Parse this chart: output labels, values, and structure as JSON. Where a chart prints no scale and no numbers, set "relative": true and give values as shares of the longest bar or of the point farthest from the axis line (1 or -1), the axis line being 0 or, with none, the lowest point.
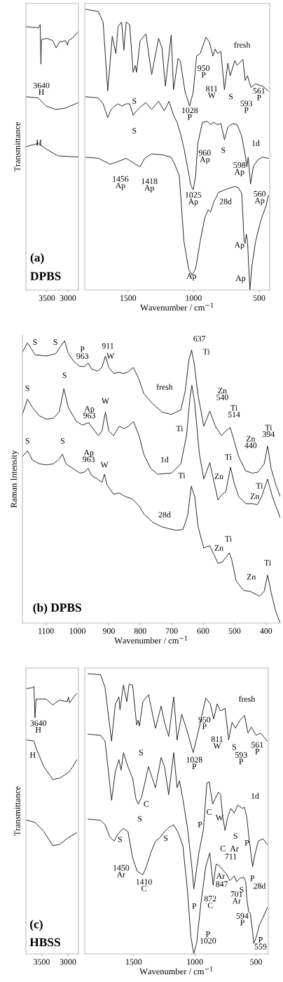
{
  "chart_data": [
    {
      "type": "line",
      "relative": true,
      "xlim": [
        4000,
        2750
      ],
      "xticks": [
        3500,
        3000
      ],
      "tick_labels": "x",
      "ylabel": "Transmittance",
      "series": [
        {
          "color": "#222222",
          "x": [
            4000,
            3700,
            3660,
            3644,
            3630,
            3500,
            3360,
            3280,
            3200,
            3060,
            3010,
            2990,
            2900,
            2750
          ],
          "values": [
            0.992,
            0.987,
            1.0,
            0.851,
            0.943,
            0.948,
            0.939,
            0.912,
            0.934,
            0.939,
            0.922,
            0.939,
            0.948,
            0.974
          ]
        },
        {
          "color": "#222222",
          "x": [
            4000,
            3710,
            3630,
            3520,
            3290,
            3060,
            2945,
            2750
          ],
          "values": [
            0.728,
            0.724,
            0.711,
            0.693,
            0.68,
            0.685,
            0.693,
            0.706
          ]
        },
        {
          "color": "#222222",
          "x": [
            4000,
            3710,
            3520,
            3230,
            2750
          ],
          "values": [
            0.54,
            0.552,
            0.531,
            0.505,
            0.501
          ]
        }
      ],
      "annotations": [
        "3640\nH",
        "H",
        "(a)",
        "DPBS"
      ]
    },
    {
      "type": "line",
      "relative": true,
      "xlim": [
        1830,
        420
      ],
      "xticks": [
        1500,
        1000,
        500
      ],
      "tick_labels": "x",
      "xlabel": "Wavenumber / cm$^{−1}$",
      "series": [
        {
          "color": "#222222",
          "x": [
            1822,
            1726,
            1690,
            1655,
            1620,
            1593,
            1576,
            1549,
            1532,
            1514,
            1488,
            1461,
            1444,
            1435,
            1408,
            1364,
            1320,
            1267,
            1241,
            1215,
            1171,
            1153,
            1118,
            1100,
            1065,
            1030,
            1003,
            977,
            950,
            906,
            880,
            853,
            836,
            818,
            792,
            765,
            739,
            721,
            686,
            668,
            624,
            607,
            589,
            563,
            527,
            475,
            430
          ],
          "values": [
            1.0,
            0.991,
            0.954,
            0.709,
            0.904,
            0.842,
            0.937,
            0.954,
            0.854,
            0.954,
            0.945,
            0.775,
            0.8,
            0.775,
            0.887,
            0.912,
            0.767,
            0.896,
            0.862,
            0.726,
            0.908,
            0.713,
            0.825,
            0.813,
            0.705,
            0.655,
            0.705,
            0.833,
            0.842,
            0.9,
            0.883,
            0.833,
            0.858,
            0.842,
            0.85,
            0.713,
            0.808,
            0.763,
            0.817,
            0.8,
            0.821,
            0.746,
            0.763,
            0.721,
            0.734,
            0.726,
            0.709
          ]
        },
        {
          "color": "#222222",
          "x": [
            1822,
            1726,
            1690,
            1655,
            1629,
            1602,
            1576,
            1549,
            1514,
            1488,
            1461,
            1435,
            1408,
            1364,
            1320,
            1267,
            1223,
            1188,
            1153,
            1126,
            1100,
            1074,
            1047,
            1021,
            1003,
            985,
            968,
            933,
            897,
            871,
            845,
            818,
            792,
            765,
            739,
            704,
            668,
            633,
            607,
            594,
            584,
            566,
            545,
            510,
            475,
            430
          ],
          "values": [
            0.688,
            0.684,
            0.663,
            0.614,
            0.643,
            0.655,
            0.663,
            0.655,
            0.663,
            0.663,
            0.622,
            0.638,
            0.651,
            0.667,
            0.643,
            0.672,
            0.638,
            0.672,
            0.622,
            0.597,
            0.556,
            0.506,
            0.439,
            0.373,
            0.357,
            0.406,
            0.522,
            0.597,
            0.601,
            0.589,
            0.597,
            0.589,
            0.593,
            0.535,
            0.58,
            0.593,
            0.589,
            0.547,
            0.481,
            0.439,
            0.473,
            0.377,
            0.439,
            0.464,
            0.473,
            0.469
          ]
        },
        {
          "color": "#222222",
          "x": [
            1822,
            1726,
            1637,
            1585,
            1514,
            1444,
            1408,
            1373,
            1320,
            1232,
            1171,
            1144,
            1109,
            1074,
            1038,
            1012,
            985,
            950,
            915,
            889,
            871,
            845,
            809,
            739,
            686,
            660,
            633,
            615,
            607,
            598,
            589,
            571,
            554,
            527,
            492,
            475,
            448,
            430
          ],
          "values": [
            0.473,
            0.469,
            0.448,
            0.456,
            0.469,
            0.448,
            0.439,
            0.469,
            0.485,
            0.481,
            0.473,
            0.448,
            0.406,
            0.174,
            0.075,
            0.054,
            0.075,
            0.174,
            0.257,
            0.286,
            0.278,
            0.315,
            0.348,
            0.361,
            0.369,
            0.365,
            0.344,
            0.174,
            0.166,
            0.199,
            0.174,
            0.0,
            0.091,
            0.174,
            0.24,
            0.265,
            0.299,
            0.337
          ]
        }
      ],
      "annotations": [
        "fresh",
        "950\nP",
        "811\nW",
        "S",
        "593\nP",
        "561\nP",
        "1028\nP",
        "S",
        "S",
        "S",
        "1d",
        "960\nAp",
        "598\nAp",
        "1456\nAp",
        "1418\nAp",
        "1025\nAp",
        "560\nAp",
        "28d",
        "Ap",
        "Ap",
        "Ap"
      ]
    },
    {
      "type": "line",
      "relative": true,
      "xlim": [
        1175,
        355
      ],
      "xticks": [
        1100,
        1000,
        900,
        800,
        700,
        600,
        500,
        400
      ],
      "tick_labels": "x",
      "xlabel": "Wavenumber / cm$^{−1}$",
      "ylabel": "Raman Intensity",
      "series": [
        {
          "color": "#222222",
          "x": [
            1175,
            1159,
            1146,
            1135,
            1099,
            1069,
            1054,
            1041,
            1029,
            1010,
            992,
            977,
            966,
            955,
            936,
            922,
            911,
            900,
            885,
            867,
            855,
            841,
            822,
            804,
            789,
            760,
            730,
            701,
            671,
            657,
            646,
            637,
            629,
            616,
            598,
            579,
            561,
            542,
            528,
            514,
            502,
            487,
            465,
            443,
            425,
            406,
            395,
            384,
            369,
            355
          ],
          "values": [
            0.959,
            0.992,
            0.971,
            0.95,
            0.946,
            0.954,
            0.979,
            1.0,
            0.954,
            0.925,
            0.909,
            0.909,
            0.921,
            0.9,
            0.892,
            0.905,
            0.946,
            0.905,
            0.884,
            0.888,
            0.884,
            0.888,
            0.905,
            0.863,
            0.813,
            0.776,
            0.747,
            0.739,
            0.755,
            0.822,
            0.929,
            0.967,
            0.921,
            0.805,
            0.697,
            0.751,
            0.697,
            0.664,
            0.68,
            0.693,
            0.647,
            0.589,
            0.539,
            0.531,
            0.535,
            0.564,
            0.627,
            0.548,
            0.49,
            0.448
          ]
        },
        {
          "color": "#222222",
          "x": [
            1175,
            1159,
            1143,
            1121,
            1099,
            1076,
            1058,
            1043,
            1029,
            1003,
            984,
            964,
            951,
            933,
            922,
            911,
            900,
            885,
            867,
            852,
            837,
            822,
            804,
            789,
            767,
            745,
            701,
            671,
            653,
            642,
            636,
            627,
            612,
            598,
            579,
            553,
            539,
            528,
            513,
            502,
            487,
            465,
            443,
            428,
            414,
            395,
            380,
            355
          ],
          "values": [
            0.739,
            0.793,
            0.763,
            0.734,
            0.722,
            0.726,
            0.747,
            0.83,
            0.763,
            0.714,
            0.701,
            0.71,
            0.689,
            0.664,
            0.68,
            0.747,
            0.68,
            0.664,
            0.697,
            0.689,
            0.697,
            0.714,
            0.664,
            0.598,
            0.548,
            0.527,
            0.531,
            0.564,
            0.664,
            0.797,
            0.842,
            0.78,
            0.598,
            0.51,
            0.568,
            0.436,
            0.456,
            0.465,
            0.552,
            0.498,
            0.448,
            0.423,
            0.423,
            0.419,
            0.448,
            0.51,
            0.448,
            0.373
          ]
        },
        {
          "color": "#222222",
          "x": [
            1175,
            1159,
            1143,
            1121,
            1099,
            1076,
            1058,
            1048,
            1036,
            1010,
            992,
            977,
            966,
            955,
            936,
            922,
            914,
            906,
            885,
            867,
            848,
            826,
            804,
            789,
            760,
            730,
            686,
            664,
            649,
            638,
            627,
            616,
            598,
            579,
            553,
            539,
            517,
            509,
            495,
            472,
            450,
            421,
            406,
            395,
            384,
            369,
            355
          ],
          "values": [
            0.589,
            0.61,
            0.577,
            0.564,
            0.56,
            0.564,
            0.581,
            0.598,
            0.564,
            0.544,
            0.531,
            0.535,
            0.548,
            0.523,
            0.51,
            0.498,
            0.527,
            0.49,
            0.456,
            0.461,
            0.448,
            0.44,
            0.415,
            0.386,
            0.357,
            0.34,
            0.328,
            0.332,
            0.382,
            0.485,
            0.448,
            0.34,
            0.266,
            0.274,
            0.212,
            0.216,
            0.249,
            0.224,
            0.149,
            0.116,
            0.112,
            0.095,
            0.112,
            0.17,
            0.108,
            0.041,
            0.0
          ]
        }
      ],
      "annotations": [
        "S",
        "S",
        "P\n963",
        "911",
        "W",
        "637",
        "Ti",
        "fresh",
        "Zn\n540",
        "Ti\n514",
        "Zn\n440",
        "Ti\n394",
        "S",
        "S",
        "Ap\n963",
        "W",
        "Ti",
        "1d",
        "Ti",
        "Zn",
        "Ti",
        "Zn",
        "S",
        "S",
        "Ap\n963",
        "W",
        "Ti",
        "28d",
        "Ti",
        "Zn",
        "Ti",
        "Zn",
        "(b) DPBS"
      ]
    },
    {
      "type": "line",
      "relative": true,
      "xlim": [
        3800,
        2800
      ],
      "xticks": [
        3500,
        3000
      ],
      "tick_labels": "x",
      "ylabel": "Transmittance",
      "series": [
        {
          "color": "#222222",
          "x": [
            3784,
            3670,
            3648,
            3627,
            3606,
            3415,
            3288,
            3161,
            3012,
            2991,
            2970,
            2834
          ],
          "values": [
            0.992,
            0.996,
            1.0,
            0.883,
            0.953,
            0.953,
            0.931,
            0.949,
            0.943,
            0.961,
            0.939,
            0.974
          ]
        },
        {
          "color": "#222222",
          "x": [
            3784,
            3648,
            3606,
            3458,
            3288,
            3161,
            2991,
            2906,
            2834
          ],
          "values": [
            0.8,
            0.796,
            0.769,
            0.7,
            0.652,
            0.657,
            0.678,
            0.7,
            0.726
          ]
        },
        {
          "color": "#222222",
          "x": [
            3784,
            3627,
            3458,
            3288,
            3161,
            2991,
            2834
          ],
          "values": [
            0.5,
            0.492,
            0.457,
            0.405,
            0.409,
            0.435,
            0.453
          ]
        }
      ],
      "annotations": [
        "3640\nH",
        "H",
        "(c)",
        "HBSS"
      ]
    },
    {
      "type": "line",
      "relative": true,
      "xlim": [
        1900,
        400
      ],
      "xticks": [
        1500,
        1000,
        500
      ],
      "tick_labels": "x",
      "xlabel": "Wavenumber / cm$^{−1}$",
      "series": [
        {
          "color": "#222222",
          "x": [
            1874,
            1771,
            1734,
            1681,
            1650,
            1621,
            1612,
            1584,
            1556,
            1537,
            1509,
            1476,
            1463,
            1453,
            1425,
            1379,
            1322,
            1276,
            1248,
            1214,
            1173,
            1145,
            1108,
            1079,
            1051,
            1014,
            977,
            949,
            911,
            874,
            846,
            818,
            790,
            753,
            724,
            696,
            668,
            631,
            594,
            566,
            538,
            500,
            463,
            407
          ],
          "values": [
            1.0,
            0.996,
            0.95,
            0.759,
            0.892,
            0.917,
            0.871,
            0.959,
            0.9,
            0.963,
            0.959,
            0.817,
            0.834,
            0.813,
            0.9,
            0.925,
            0.805,
            0.884,
            0.826,
            0.776,
            0.917,
            0.763,
            0.855,
            0.817,
            0.776,
            0.718,
            0.784,
            0.838,
            0.913,
            0.892,
            0.838,
            0.892,
            0.867,
            0.876,
            0.763,
            0.826,
            0.805,
            0.834,
            0.851,
            0.788,
            0.809,
            0.78,
            0.788,
            0.759
          ]
        },
        {
          "color": "#222222",
          "x": [
            1874,
            1771,
            1734,
            1681,
            1650,
            1621,
            1603,
            1584,
            1547,
            1509,
            1481,
            1463,
            1435,
            1379,
            1322,
            1276,
            1248,
            1214,
            1173,
            1145,
            1126,
            1098,
            1061,
            1023,
            1009,
            967,
            930,
            902,
            883,
            855,
            836,
            808,
            790,
            771,
            753,
            734,
            706,
            678,
            650,
            612,
            594,
            575,
            557,
            528,
            510,
            482,
            444,
            407
          ],
          "values": [
            0.784,
            0.78,
            0.759,
            0.548,
            0.651,
            0.693,
            0.656,
            0.718,
            0.668,
            0.627,
            0.552,
            0.535,
            0.56,
            0.668,
            0.593,
            0.701,
            0.668,
            0.568,
            0.718,
            0.593,
            0.618,
            0.552,
            0.452,
            0.303,
            0.232,
            0.361,
            0.444,
            0.61,
            0.614,
            0.535,
            0.552,
            0.577,
            0.568,
            0.485,
            0.44,
            0.485,
            0.519,
            0.502,
            0.531,
            0.519,
            0.523,
            0.485,
            0.411,
            0.311,
            0.353,
            0.402,
            0.411,
            0.39
          ]
        },
        {
          "color": "#222222",
          "x": [
            1874,
            1771,
            1734,
            1697,
            1659,
            1631,
            1584,
            1547,
            1509,
            1472,
            1425,
            1397,
            1360,
            1322,
            1285,
            1248,
            1210,
            1173,
            1136,
            1098,
            1061,
            1033,
            1009,
            986,
            949,
            911,
            878,
            851,
            827,
            799,
            771,
            743,
            715,
            678,
            659,
            631,
            603,
            584,
            575,
            560,
            547,
            528,
            519,
            500,
            472,
            444,
            407
          ],
          "values": [
            0.481,
            0.477,
            0.461,
            0.419,
            0.402,
            0.427,
            0.448,
            0.436,
            0.344,
            0.295,
            0.282,
            0.311,
            0.361,
            0.402,
            0.415,
            0.436,
            0.452,
            0.461,
            0.432,
            0.386,
            0.228,
            0.062,
            0.0,
            0.037,
            0.187,
            0.311,
            0.361,
            0.245,
            0.32,
            0.315,
            0.299,
            0.286,
            0.261,
            0.278,
            0.257,
            0.27,
            0.274,
            0.257,
            0.195,
            0.149,
            0.145,
            0.079,
            0.037,
            0.058,
            0.104,
            0.129,
            0.166
          ]
        }
      ],
      "annotations": [
        "fresh",
        "950\nP",
        "811\nW",
        "S",
        "593\nP",
        "561\nP",
        "1028\nP",
        "S",
        "C",
        "S",
        "C",
        "W",
        "P",
        "1d",
        "S",
        "P",
        "P",
        "S",
        "S",
        "1450\nAr",
        "1410\nC",
        "P",
        "C",
        "Ar",
        "711",
        "Ar",
        "847",
        "S",
        "872\nC",
        "701\nAr",
        "28d",
        "594\nP",
        "P\n1020",
        "P\n559"
      ]
    }
  ]
}
